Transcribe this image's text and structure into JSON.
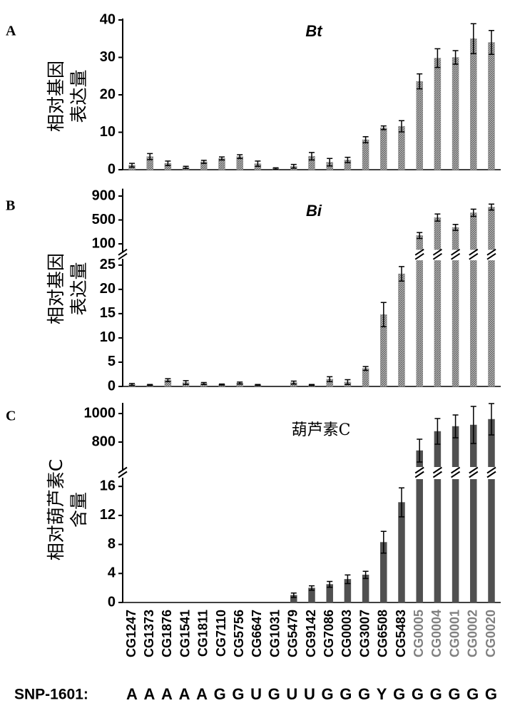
{
  "chart_data": [
    {
      "type": "bar",
      "panel_label": "A",
      "title": "Bt",
      "ylabel": [
        "相对基因",
        "表达量"
      ],
      "color": "#8c8c8c",
      "values": [
        1.2,
        3.5,
        1.7,
        0.6,
        2.1,
        3.0,
        3.5,
        1.6,
        0.3,
        0.9,
        3.6,
        2.0,
        2.6,
        8.0,
        11.2,
        11.6,
        23.6,
        29.8,
        30.0,
        35.0,
        34.0
      ],
      "errors": [
        0.5,
        0.8,
        0.6,
        0.3,
        0.4,
        0.4,
        0.5,
        0.7,
        0.2,
        0.5,
        1.0,
        1.0,
        0.7,
        0.8,
        0.5,
        1.5,
        2.0,
        2.5,
        1.8,
        4.0,
        3.2
      ],
      "segments": [
        {
          "ylim": [
            0,
            40
          ],
          "yticks": [
            0,
            10,
            20,
            30,
            40
          ]
        }
      ]
    },
    {
      "type": "bar",
      "panel_label": "B",
      "title": "Bi",
      "ylabel": [
        "相对基因",
        "表达量"
      ],
      "color": "#8c8c8c",
      "values": [
        0.4,
        0.3,
        1.3,
        0.8,
        0.6,
        0.4,
        0.7,
        0.3,
        0,
        0.8,
        0.3,
        1.5,
        0.9,
        3.7,
        14.8,
        23.2,
        240,
        540,
        375,
        620,
        715
      ],
      "errors": [
        0.2,
        0.1,
        0.3,
        0.4,
        0.2,
        0.1,
        0.2,
        0.1,
        0,
        0.3,
        0.1,
        0.5,
        0.5,
        0.4,
        2.5,
        1.5,
        50,
        60,
        50,
        60,
        50
      ],
      "segments": [
        {
          "ylim": [
            0,
            26
          ],
          "yticks": [
            0,
            5,
            10,
            15,
            20,
            25
          ]
        },
        {
          "ylim": [
            0,
            1000
          ],
          "yticks": [
            100,
            500,
            900
          ]
        }
      ]
    },
    {
      "type": "bar",
      "panel_label": "C",
      "title": "葫芦素C",
      "ylabel": [
        "相对葫芦素C",
        "含量"
      ],
      "color": "#505050",
      "categories": [
        "CG1247",
        "CG1373",
        "CG1876",
        "CG1541",
        "CG1811",
        "CG7110",
        "CG5756",
        "CG6647",
        "CG1031",
        "CG5479",
        "CG9142",
        "CG7086",
        "CG0003",
        "CG3007",
        "CG6508",
        "CG5483",
        "CG0005",
        "CG0004",
        "CG0001",
        "CG0002",
        "CG0020"
      ],
      "category_colors": [
        "#000000",
        "#000000",
        "#000000",
        "#000000",
        "#000000",
        "#000000",
        "#000000",
        "#000000",
        "#000000",
        "#000000",
        "#000000",
        "#000000",
        "#000000",
        "#000000",
        "#000000",
        "#000000",
        "#808080",
        "#808080",
        "#808080",
        "#808080",
        "#808080"
      ],
      "values": [
        0,
        0,
        0,
        0,
        0,
        0,
        0,
        0,
        0,
        1.0,
        2.0,
        2.5,
        3.2,
        3.8,
        8.3,
        13.8,
        740,
        875,
        910,
        920,
        960
      ],
      "errors": [
        0,
        0,
        0,
        0,
        0,
        0,
        0,
        0,
        0,
        0.3,
        0.3,
        0.4,
        0.6,
        0.5,
        1.5,
        2.0,
        80,
        90,
        80,
        130,
        110
      ],
      "segments": [
        {
          "ylim": [
            0,
            17
          ],
          "yticks": [
            0,
            4,
            8,
            12,
            16
          ]
        },
        {
          "ylim": [
            625,
            1065
          ],
          "yticks": [
            800,
            1000
          ]
        }
      ]
    }
  ],
  "footer": {
    "label": "SNP-1601:",
    "sequence": "AAAAAGGUGUUGGGYGGGGGG"
  }
}
